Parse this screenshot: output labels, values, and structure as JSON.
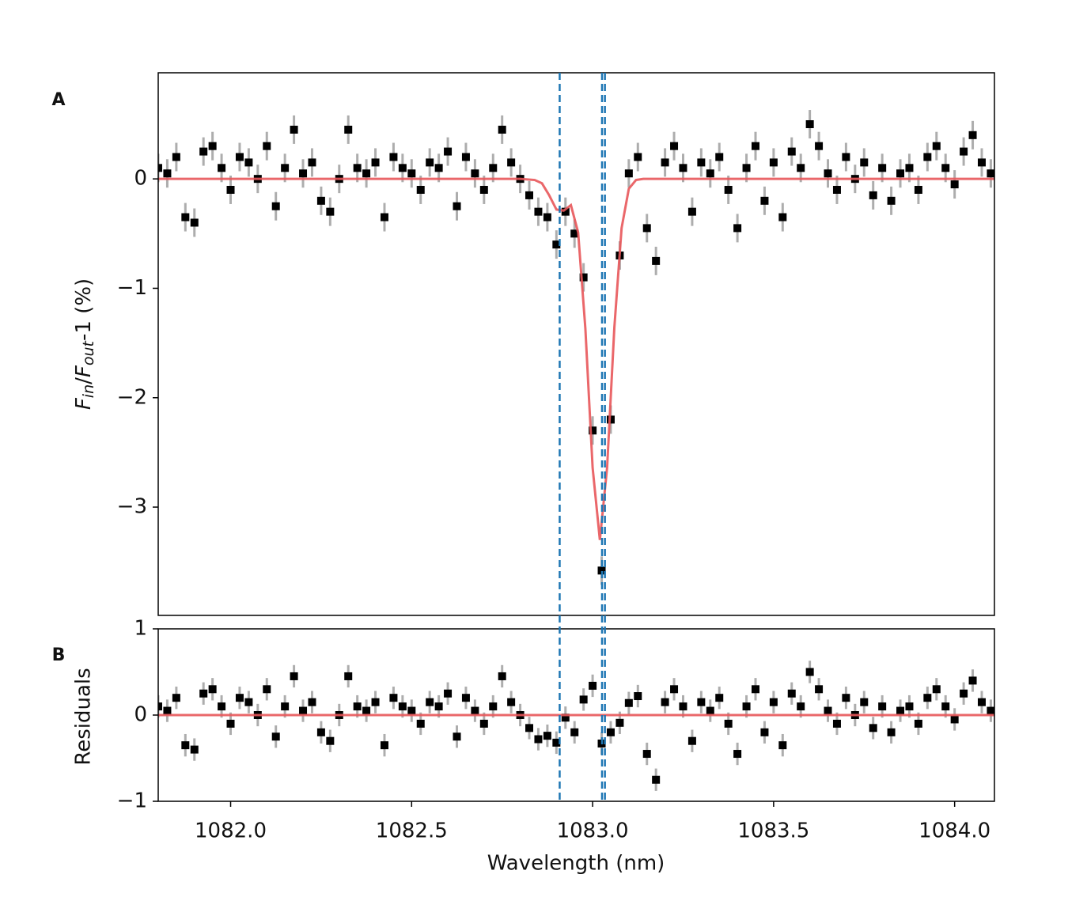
{
  "chart_data": [
    {
      "type": "scatter",
      "panel_label": "A",
      "ylabel_parts": [
        "F",
        "in",
        "/",
        "F",
        "out",
        "-1 (%)"
      ],
      "xlim": [
        1081.8,
        1084.11
      ],
      "ylim": [
        -3.99,
        0.97
      ],
      "yticks": [
        {
          "value": -3,
          "label": "−3"
        },
        {
          "value": -2,
          "label": "−2"
        },
        {
          "value": -1,
          "label": "−1"
        },
        0
      ],
      "vlines": [
        1082.909,
        1083.026,
        1083.034
      ],
      "vline_color": "#1f77b4",
      "color": "#000000",
      "error_color": "#999999",
      "error": 0.13,
      "x": [
        1081.8,
        1081.825,
        1081.85,
        1081.875,
        1081.9,
        1081.925,
        1081.95,
        1081.975,
        1082.0,
        1082.025,
        1082.05,
        1082.075,
        1082.1,
        1082.125,
        1082.15,
        1082.175,
        1082.2,
        1082.225,
        1082.25,
        1082.275,
        1082.3,
        1082.325,
        1082.35,
        1082.375,
        1082.4,
        1082.425,
        1082.45,
        1082.475,
        1082.5,
        1082.525,
        1082.55,
        1082.575,
        1082.6,
        1082.625,
        1082.65,
        1082.675,
        1082.7,
        1082.725,
        1082.75,
        1082.775,
        1082.8,
        1082.825,
        1082.85,
        1082.875,
        1082.9,
        1082.925,
        1082.95,
        1082.975,
        1083.0,
        1083.025,
        1083.05,
        1083.075,
        1083.1,
        1083.125,
        1083.15,
        1083.175,
        1083.2,
        1083.225,
        1083.25,
        1083.275,
        1083.3,
        1083.325,
        1083.35,
        1083.375,
        1083.4,
        1083.425,
        1083.45,
        1083.475,
        1083.5,
        1083.525,
        1083.55,
        1083.575,
        1083.6,
        1083.625,
        1083.65,
        1083.675,
        1083.7,
        1083.725,
        1083.75,
        1083.775,
        1083.8,
        1083.825,
        1083.85,
        1083.875,
        1083.9,
        1083.925,
        1083.95,
        1083.975,
        1084.0,
        1084.025,
        1084.05,
        1084.075,
        1084.1
      ],
      "values": [
        0.1,
        0.05,
        0.2,
        -0.35,
        -0.4,
        0.25,
        0.3,
        0.1,
        -0.1,
        0.2,
        0.15,
        0.0,
        0.3,
        -0.25,
        0.1,
        0.45,
        0.05,
        0.15,
        -0.2,
        -0.3,
        0.0,
        0.45,
        0.1,
        0.05,
        0.15,
        -0.35,
        0.2,
        0.1,
        0.05,
        -0.1,
        0.15,
        0.1,
        0.25,
        -0.25,
        0.2,
        0.05,
        -0.1,
        0.1,
        0.45,
        0.15,
        0.0,
        -0.15,
        -0.3,
        -0.35,
        -0.6,
        -0.3,
        -0.5,
        -0.9,
        -2.3,
        -3.58,
        -2.2,
        -0.7,
        0.05,
        0.2,
        -0.45,
        -0.75,
        0.15,
        0.3,
        0.1,
        -0.3,
        0.15,
        0.05,
        0.2,
        -0.1,
        -0.45,
        0.1,
        0.3,
        -0.2,
        0.15,
        -0.35,
        0.25,
        0.1,
        0.5,
        0.3,
        0.05,
        -0.1,
        0.2,
        0.0,
        0.15,
        -0.15,
        0.1,
        -0.2,
        0.05,
        0.1,
        -0.1,
        0.2,
        0.3,
        0.1,
        -0.05,
        0.25,
        0.4,
        0.15,
        0.05
      ],
      "model": {
        "color": "#e8575a",
        "x": [
          1081.8,
          1082.8,
          1082.84,
          1082.86,
          1082.88,
          1082.9,
          1082.92,
          1082.94,
          1082.96,
          1082.98,
          1083.0,
          1083.02,
          1083.04,
          1083.06,
          1083.08,
          1083.1,
          1083.12,
          1083.14,
          1084.11
        ],
        "values": [
          0,
          0,
          -0.01,
          -0.04,
          -0.15,
          -0.28,
          -0.29,
          -0.24,
          -0.49,
          -1.37,
          -2.64,
          -3.3,
          -2.64,
          -1.36,
          -0.45,
          -0.09,
          -0.01,
          0,
          0
        ]
      }
    },
    {
      "type": "scatter",
      "panel_label": "B",
      "ylabel": "Residuals",
      "xlabel": "Wavelength (nm)",
      "xlim": [
        1081.8,
        1084.11
      ],
      "ylim": [
        -1,
        1
      ],
      "yticks": [
        {
          "value": -1,
          "label": "−1"
        },
        0,
        1
      ],
      "xticks": [
        {
          "value": 1082,
          "label": "1082.0"
        },
        {
          "value": 1082.5,
          "label": "1082.5"
        },
        {
          "value": 1083,
          "label": "1083.0"
        },
        {
          "value": 1083.5,
          "label": "1083.5"
        },
        {
          "value": 1084,
          "label": "1084.0"
        }
      ],
      "color": "#000000",
      "error_color": "#999999",
      "error": 0.13,
      "x": [
        1081.8,
        1081.825,
        1081.85,
        1081.875,
        1081.9,
        1081.925,
        1081.95,
        1081.975,
        1082.0,
        1082.025,
        1082.05,
        1082.075,
        1082.1,
        1082.125,
        1082.15,
        1082.175,
        1082.2,
        1082.225,
        1082.25,
        1082.275,
        1082.3,
        1082.325,
        1082.35,
        1082.375,
        1082.4,
        1082.425,
        1082.45,
        1082.475,
        1082.5,
        1082.525,
        1082.55,
        1082.575,
        1082.6,
        1082.625,
        1082.65,
        1082.675,
        1082.7,
        1082.725,
        1082.75,
        1082.775,
        1082.8,
        1082.825,
        1082.85,
        1082.875,
        1082.9,
        1082.925,
        1082.95,
        1082.975,
        1083.0,
        1083.025,
        1083.05,
        1083.075,
        1083.1,
        1083.125,
        1083.15,
        1083.175,
        1083.2,
        1083.225,
        1083.25,
        1083.275,
        1083.3,
        1083.325,
        1083.35,
        1083.375,
        1083.4,
        1083.425,
        1083.45,
        1083.475,
        1083.5,
        1083.525,
        1083.55,
        1083.575,
        1083.6,
        1083.625,
        1083.65,
        1083.675,
        1083.7,
        1083.725,
        1083.75,
        1083.775,
        1083.8,
        1083.825,
        1083.85,
        1083.875,
        1083.9,
        1083.925,
        1083.95,
        1083.975,
        1084.0,
        1084.025,
        1084.05,
        1084.075,
        1084.1
      ],
      "values": [
        0.1,
        0.05,
        0.2,
        -0.35,
        -0.4,
        0.25,
        0.3,
        0.1,
        -0.1,
        0.2,
        0.15,
        0.0,
        0.3,
        -0.25,
        0.1,
        0.45,
        0.05,
        0.15,
        -0.2,
        -0.3,
        0.0,
        0.45,
        0.1,
        0.05,
        0.15,
        -0.35,
        0.2,
        0.1,
        0.05,
        -0.1,
        0.15,
        0.1,
        0.25,
        -0.25,
        0.2,
        0.05,
        -0.1,
        0.1,
        0.45,
        0.15,
        0.0,
        -0.15,
        -0.28,
        -0.24,
        -0.32,
        -0.03,
        -0.2,
        0.18,
        0.34,
        -0.33,
        -0.2,
        -0.09,
        0.14,
        0.22,
        -0.45,
        -0.75,
        0.15,
        0.3,
        0.1,
        -0.3,
        0.15,
        0.05,
        0.2,
        -0.1,
        -0.45,
        0.1,
        0.3,
        -0.2,
        0.15,
        -0.35,
        0.25,
        0.1,
        0.5,
        0.3,
        0.05,
        -0.1,
        0.2,
        0.0,
        0.15,
        -0.15,
        0.1,
        -0.2,
        0.05,
        0.1,
        -0.1,
        0.2,
        0.3,
        0.1,
        -0.05,
        0.25,
        0.4,
        0.15,
        0.05
      ],
      "model": {
        "color": "#e8575a",
        "x": [
          1081.8,
          1084.11
        ],
        "values": [
          0,
          0
        ]
      }
    }
  ]
}
